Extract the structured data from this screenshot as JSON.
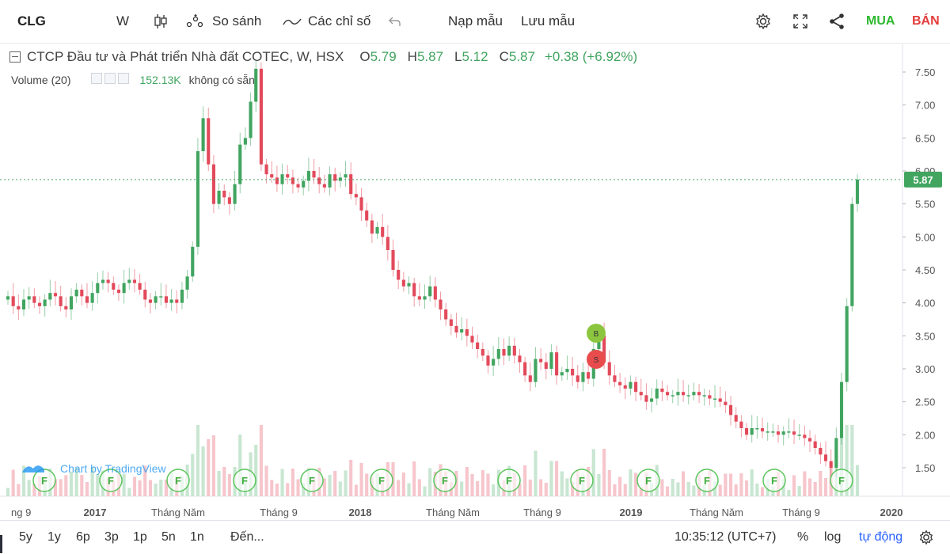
{
  "toolbar": {
    "symbol": "CLG",
    "interval": "W",
    "compare_label": "So sánh",
    "indicators_label": "Các chỉ số",
    "load_template_label": "Nạp mẫu",
    "save_template_label": "Lưu mẫu",
    "buy_label": "MUA",
    "sell_label": "BÁN"
  },
  "legend": {
    "title": "CTCP Đầu tư và Phát triển Nhà đất COTEC, W, HSX",
    "open_label": "O",
    "open": "5.79",
    "high_label": "H",
    "high": "5.87",
    "low_label": "L",
    "low": "5.12",
    "close_label": "C",
    "close": "5.87",
    "change": "+0.38 (+6.92%)",
    "volume_label": "Volume (20)",
    "volume_value": "152.13K",
    "volume_note": "không có sẵn"
  },
  "watermark": "Chart by TradingView",
  "chart_data": {
    "type": "candlestick",
    "y_ticks": [
      "7.50",
      "7.00",
      "6.50",
      "6.00",
      "5.50",
      "5.00",
      "4.50",
      "4.00",
      "3.50",
      "3.00",
      "2.50",
      "2.00",
      "1.50"
    ],
    "x_labels": [
      "ng 9",
      "2017",
      "Tháng Năm",
      "Tháng 9",
      "2018",
      "Tháng Năm",
      "Tháng 9",
      "2019",
      "Tháng Năm",
      "Tháng 9",
      "2020"
    ],
    "last_price": "5.87",
    "ylim": [
      1.2,
      7.75
    ],
    "closes": [
      4.1,
      3.95,
      3.9,
      4.05,
      4.1,
      4.0,
      3.95,
      4.05,
      4.15,
      4.1,
      3.95,
      3.9,
      4.1,
      4.2,
      4.1,
      4.0,
      4.15,
      4.3,
      4.35,
      4.3,
      4.2,
      4.15,
      4.3,
      4.35,
      4.3,
      4.2,
      4.05,
      4.0,
      4.1,
      4.1,
      4.0,
      4.05,
      4.0,
      4.2,
      4.4,
      4.85,
      6.3,
      6.8,
      6.1,
      5.5,
      5.7,
      5.6,
      5.5,
      5.8,
      6.4,
      6.5,
      7.05,
      7.55,
      6.1,
      5.95,
      5.9,
      5.8,
      5.95,
      5.9,
      5.8,
      5.75,
      5.85,
      6.0,
      5.9,
      5.8,
      5.75,
      5.95,
      5.85,
      5.9,
      5.95,
      5.65,
      5.6,
      5.4,
      5.25,
      5.05,
      5.15,
      5.0,
      4.8,
      4.5,
      4.35,
      4.25,
      4.3,
      4.1,
      4.05,
      4.1,
      4.25,
      4.05,
      3.9,
      3.75,
      3.65,
      3.55,
      3.6,
      3.5,
      3.4,
      3.3,
      3.2,
      3.05,
      3.15,
      3.3,
      3.2,
      3.35,
      3.2,
      3.1,
      2.9,
      2.8,
      3.15,
      3.1,
      3.0,
      3.25,
      2.9,
      2.95,
      3.0,
      2.9,
      2.8,
      2.95,
      2.85,
      3.3,
      3.5,
      3.1,
      2.9,
      2.8,
      2.75,
      2.7,
      2.8,
      2.65,
      2.6,
      2.5,
      2.55,
      2.7,
      2.65,
      2.6,
      2.6,
      2.65,
      2.6,
      2.6,
      2.65,
      2.6,
      2.6,
      2.55,
      2.55,
      2.5,
      2.45,
      2.3,
      2.2,
      2.1,
      2.0,
      2.1,
      2.1,
      2.05,
      2.05,
      2.05,
      2.0,
      2.05,
      2.05,
      2.0,
      2.0,
      1.95,
      1.9,
      1.8,
      1.7,
      1.6,
      1.5,
      1.95,
      2.8,
      3.95,
      5.5,
      5.87
    ],
    "buy_marker": "B",
    "sell_marker": "S",
    "event_marker": "F",
    "event_count": 13
  },
  "bottom": {
    "ranges": [
      "5y",
      "1y",
      "6p",
      "3p",
      "1p",
      "5n",
      "1n"
    ],
    "goto_label": "Đến...",
    "time": "10:35:12 (UTC+7)",
    "percent_label": "%",
    "log_label": "log",
    "auto_label": "tự động"
  },
  "colors": {
    "up": "#41a560",
    "down": "#e24a5b",
    "up_vol": "#c8e6d1",
    "down_vol": "#f6c6cc",
    "accent": "#2962ff"
  }
}
